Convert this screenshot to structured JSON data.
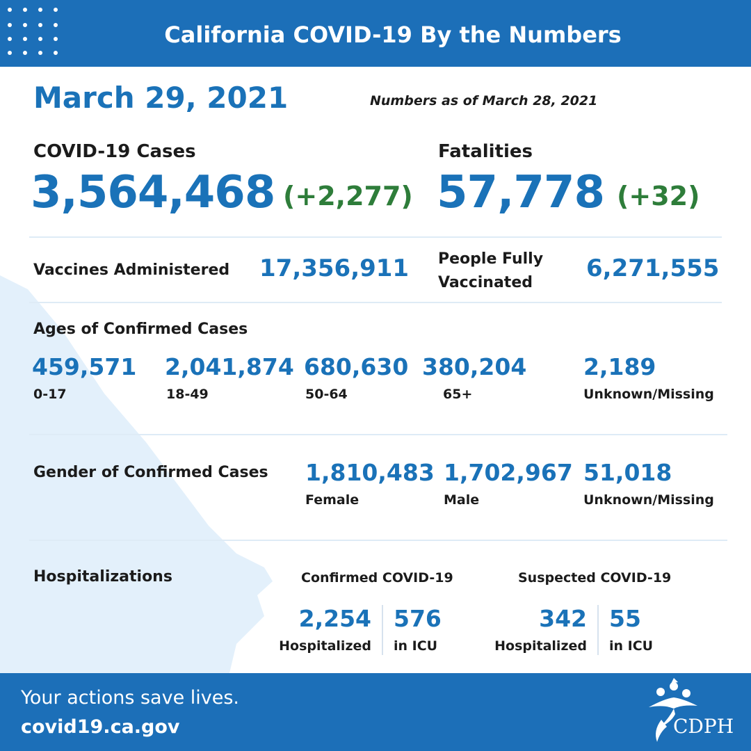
{
  "header": {
    "title": "California COVID-19 By the Numbers"
  },
  "date": "March 29, 2021",
  "as_of": "Numbers as of March 28, 2021",
  "cases": {
    "label": "COVID-19 Cases",
    "value": "3,564,468",
    "change": "(+2,277)"
  },
  "fatalities": {
    "label": "Fatalities",
    "value": "57,778",
    "change": "(+32)"
  },
  "vaccines": {
    "label": "Vaccines Administered",
    "value": "17,356,911"
  },
  "fully_vaccinated": {
    "label_line1": "People Fully",
    "label_line2": "Vaccinated",
    "value": "6,271,555"
  },
  "ages": {
    "title": "Ages of Confirmed Cases",
    "groups": [
      {
        "value": "459,571",
        "label": "0-17"
      },
      {
        "value": "2,041,874",
        "label": "18-49"
      },
      {
        "value": "680,630",
        "label": "50-64"
      },
      {
        "value": "380,204",
        "label": "65+"
      },
      {
        "value": "2,189",
        "label": "Unknown/Missing"
      }
    ]
  },
  "gender": {
    "title": "Gender of Confirmed Cases",
    "groups": [
      {
        "value": "1,810,483",
        "label": "Female"
      },
      {
        "value": "1,702,967",
        "label": "Male"
      },
      {
        "value": "51,018",
        "label": "Unknown/Missing"
      }
    ]
  },
  "hospitalizations": {
    "title": "Hospitalizations",
    "confirmed": {
      "title": "Confirmed COVID-19",
      "hospitalized": "2,254",
      "hospitalized_label": "Hospitalized",
      "icu": "576",
      "icu_label": "in ICU"
    },
    "suspected": {
      "title": "Suspected COVID-19",
      "hospitalized": "342",
      "hospitalized_label": "Hospitalized",
      "icu": "55",
      "icu_label": "in ICU"
    }
  },
  "footer": {
    "tagline": "Your actions save lives.",
    "url": "covid19.ca.gov",
    "logo_text": "CDPH"
  },
  "colors": {
    "brand_blue": "#1c6fb8",
    "value_blue": "#1a72b8",
    "change_green": "#2e7d3a",
    "map_tint": "#e3f0fb"
  }
}
